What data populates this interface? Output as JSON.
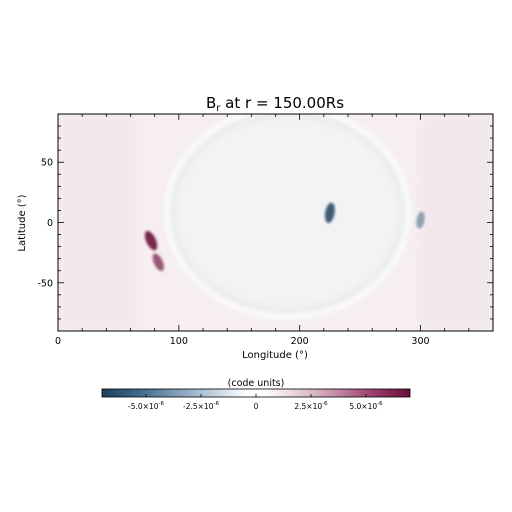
{
  "chart_data": {
    "type": "heatmap",
    "title": "B",
    "title_sub": "r",
    "title_rest": " at r = 150.00Rs",
    "xlabel": "Longitude (°)",
    "ylabel": "Latitude (°)",
    "xlim": [
      0,
      360
    ],
    "ylim": [
      -90,
      90
    ],
    "x_ticks": [
      0,
      100,
      200,
      300
    ],
    "y_ticks": [
      -50,
      0,
      50
    ],
    "x_tick_labels": [
      "0",
      "100",
      "200",
      "300"
    ],
    "y_tick_labels": [
      "-50",
      "0",
      "50"
    ],
    "colorbar": {
      "label": "(code units)",
      "range": [
        -7e-06,
        7e-06
      ],
      "ticks": [
        -5e-06,
        -2.5e-06,
        0,
        2.5e-06,
        5e-06
      ],
      "tick_labels": [
        {
          "mant": "-5.0×10",
          "exp": "-6"
        },
        {
          "mant": "-2.5×10",
          "exp": "-6"
        },
        {
          "mant": "0",
          "exp": ""
        },
        {
          "mant": "2.5×10",
          "exp": "-6"
        },
        {
          "mant": "5.0×10",
          "exp": "-6"
        }
      ],
      "colors": {
        "neg": "#1e3f5a",
        "zero": "#ffffff",
        "pos": "#6a0f3a"
      }
    },
    "regions": [
      {
        "sign": "positive",
        "level": 0.08,
        "lon": [
          0,
          65
        ],
        "lat": [
          -90,
          90
        ]
      },
      {
        "sign": "positive",
        "level": 0.08,
        "lon": [
          300,
          360
        ],
        "lat": [
          -90,
          90
        ]
      },
      {
        "sign": "negative",
        "level": 0.08,
        "lon": [
          90,
          290
        ],
        "lat": [
          -60,
          90
        ]
      }
    ],
    "features": [
      {
        "sign": "positive",
        "lon": 77,
        "lat": -15,
        "level": 0.9
      },
      {
        "sign": "positive",
        "lon": 83,
        "lat": -33,
        "level": 0.7
      },
      {
        "sign": "negative",
        "lon": 225,
        "lat": 8,
        "level": 0.85
      },
      {
        "sign": "negative",
        "lon": 300,
        "lat": 2,
        "level": 0.5
      }
    ]
  }
}
